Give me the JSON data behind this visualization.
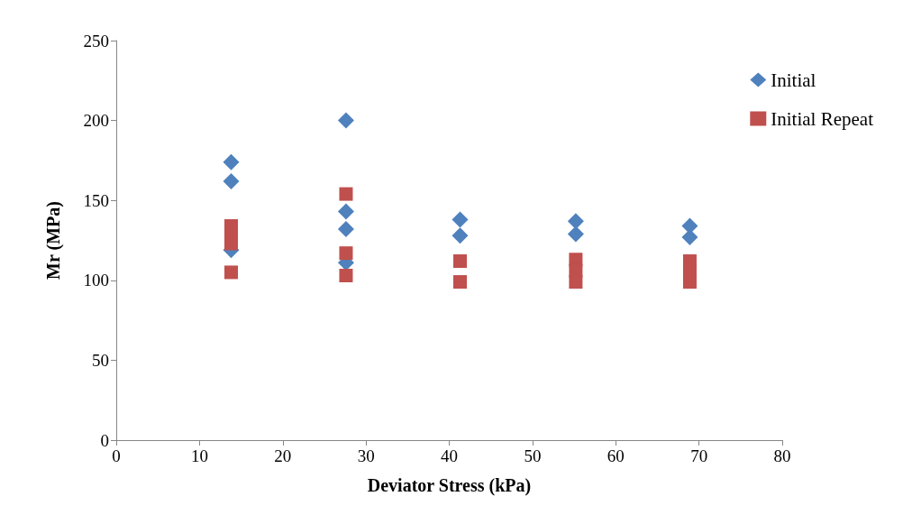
{
  "chart_data": {
    "type": "scatter",
    "xlabel": "Deviator Stress (kPa)",
    "ylabel": "Mr (MPa)",
    "xlim": [
      0,
      80
    ],
    "xticks": [
      0,
      10,
      20,
      30,
      40,
      50,
      60,
      70,
      80
    ],
    "ylim": [
      0,
      250
    ],
    "yticks": [
      0,
      50,
      100,
      150,
      200,
      250
    ],
    "grid": false,
    "legend": "top right",
    "series": [
      {
        "name": "Initial",
        "color": "#4f81bd",
        "marker": "diamond",
        "x": [
          13.8,
          13.8,
          13.8,
          27.6,
          27.6,
          27.6,
          27.6,
          41.3,
          41.3,
          55.2,
          55.2,
          68.9,
          68.9
        ],
        "values": [
          174,
          162,
          119,
          200,
          143,
          132,
          111,
          138,
          128,
          137,
          129,
          134,
          127
        ]
      },
      {
        "name": "Initial Repeat",
        "color": "#c0504d",
        "marker": "square",
        "x": [
          13.8,
          13.8,
          13.8,
          13.8,
          27.6,
          27.6,
          27.6,
          41.3,
          41.3,
          55.2,
          55.2,
          55.2,
          68.9,
          68.9,
          68.9
        ],
        "values": [
          134,
          128,
          123,
          105,
          154,
          117,
          103,
          112,
          99,
          113,
          106,
          99,
          112,
          106,
          99
        ]
      }
    ]
  }
}
